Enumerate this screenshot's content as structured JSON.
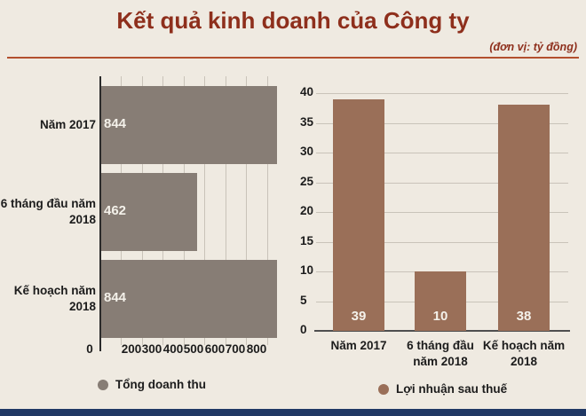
{
  "header": {
    "title": "Kết quả kinh doanh của Công ty",
    "subtitle": "(đơn vị: tỷ đồng)"
  },
  "colors": {
    "background": "#efeae1",
    "title_red": "#8e2f1c",
    "rule_orange": "#b3502e",
    "revenue_bar": "#877d75",
    "profit_bar": "#9a6f58",
    "gridline": "#c9c3b9",
    "axis_dark": "#2b2b2b",
    "axis_gray": "#4f4f4f",
    "label_dark": "#1c1c1c",
    "value_light": "#f4f1ea",
    "footer_navy": "#203864"
  },
  "chart_data": [
    {
      "type": "bar",
      "orientation": "horizontal",
      "title": "Kết quả kinh doanh của Công ty",
      "unit": "tỷ đồng",
      "legend": "Tổng doanh thu",
      "legend_position": "bottom",
      "categories": [
        "Năm 2017",
        "6 tháng đầu năm 2018",
        "Kế hoạch năm 2018"
      ],
      "category_lines": [
        [
          "Năm 2017"
        ],
        [
          "6 tháng đầu năm",
          "2018"
        ],
        [
          "Kế hoạch năm",
          "2018"
        ]
      ],
      "values": [
        844,
        462,
        844
      ],
      "data_labels": [
        "844",
        "462",
        "844"
      ],
      "xlim": [
        0,
        844
      ],
      "x_tick_values": [
        0,
        200,
        300,
        400,
        500,
        600,
        700,
        800
      ],
      "x_tick_labels": [
        "0",
        "200",
        "300",
        "400",
        "500",
        "600",
        "700",
        "800"
      ],
      "gridline_step": 100,
      "grid": true
    },
    {
      "type": "bar",
      "orientation": "vertical",
      "title": "Kết quả kinh doanh của Công ty",
      "unit": "tỷ đồng",
      "legend": "Lợi nhuận sau thuế",
      "legend_position": "bottom",
      "categories": [
        "Năm 2017",
        "6 tháng đầu năm 2018",
        "Kế hoạch năm 2018"
      ],
      "category_lines": [
        [
          "Năm 2017"
        ],
        [
          "6 tháng đầu",
          "năm 2018"
        ],
        [
          "Kế hoạch năm",
          "2018"
        ]
      ],
      "values": [
        39,
        10,
        38
      ],
      "data_labels": [
        "39",
        "10",
        "38"
      ],
      "ylim": [
        0,
        40
      ],
      "y_tick_values": [
        0,
        5,
        10,
        15,
        20,
        25,
        30,
        35,
        40
      ],
      "gridline_step": 5,
      "grid": true
    }
  ]
}
